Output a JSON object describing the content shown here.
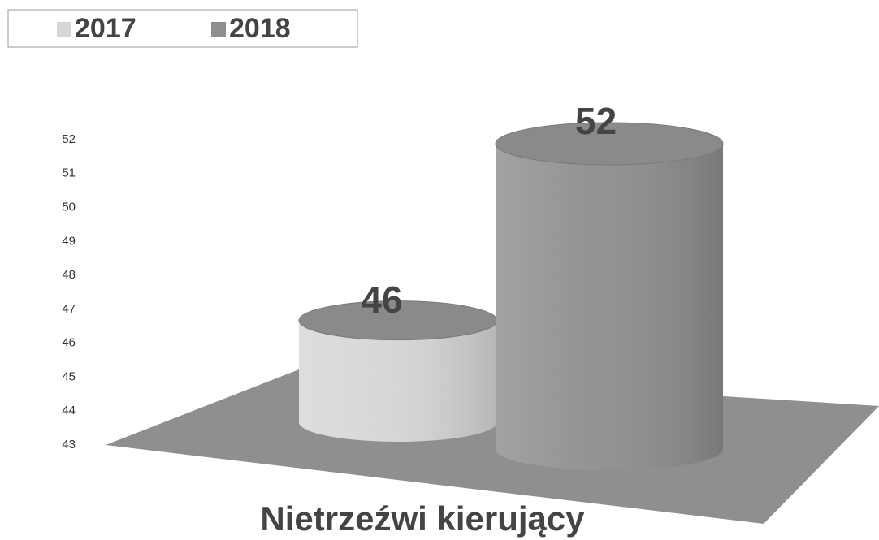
{
  "chart_data": {
    "type": "bar",
    "title": "Nietrzeźwi kierujący",
    "categories": [
      "Nietrzeźwi kierujący"
    ],
    "series": [
      {
        "name": "2017",
        "color": "#d6d6d6",
        "values": [
          46
        ]
      },
      {
        "name": "2018",
        "color": "#8e8e8e",
        "values": [
          52
        ]
      }
    ],
    "ylim": [
      43,
      52
    ],
    "yticks": [
      43,
      44,
      45,
      46,
      47,
      48,
      49,
      50,
      51,
      52
    ],
    "legend": "top-left",
    "data_labels": true
  }
}
